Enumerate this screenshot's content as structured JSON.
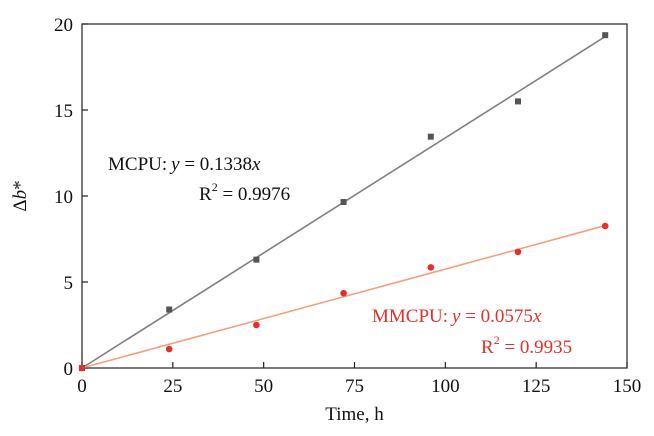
{
  "chart_data": {
    "type": "scatter",
    "xlabel": "Time, h",
    "ylabel_base": "Δ",
    "ylabel_var": "b",
    "ylabel_star": "*",
    "xlim": [
      0,
      150
    ],
    "ylim": [
      0,
      20
    ],
    "xticks": [
      0,
      25,
      50,
      75,
      100,
      125,
      150
    ],
    "yticks": [
      0,
      5,
      10,
      15,
      20
    ],
    "grid": false,
    "series": [
      {
        "name": "MCPU",
        "color": "#808080",
        "marker_color": "#555555",
        "x": [
          0,
          24,
          48,
          72,
          96,
          120,
          144
        ],
        "y": [
          0,
          3.4,
          6.3,
          9.65,
          13.45,
          15.5,
          19.35
        ],
        "fit_slope": 0.1338,
        "eq_label": "MCPU:",
        "eq_y": "y",
        "eq_rest": " = 0.1338",
        "eq_x": "x",
        "r2_R": "R",
        "r2_sup": "2",
        "r2_value": " = 0.9976"
      },
      {
        "name": "MMCPU",
        "color": "#f4a07e",
        "marker_color": "#e4302a",
        "x": [
          0,
          24,
          48,
          72,
          96,
          120,
          144
        ],
        "y": [
          0,
          1.1,
          2.5,
          4.35,
          5.85,
          6.75,
          8.25
        ],
        "fit_slope": 0.0575,
        "eq_label": "MMCPU:",
        "eq_y": "y",
        "eq_rest": " = 0.0575",
        "eq_x": "x",
        "r2_R": "R",
        "r2_sup": "2",
        "r2_value": " = 0.9935"
      }
    ]
  }
}
